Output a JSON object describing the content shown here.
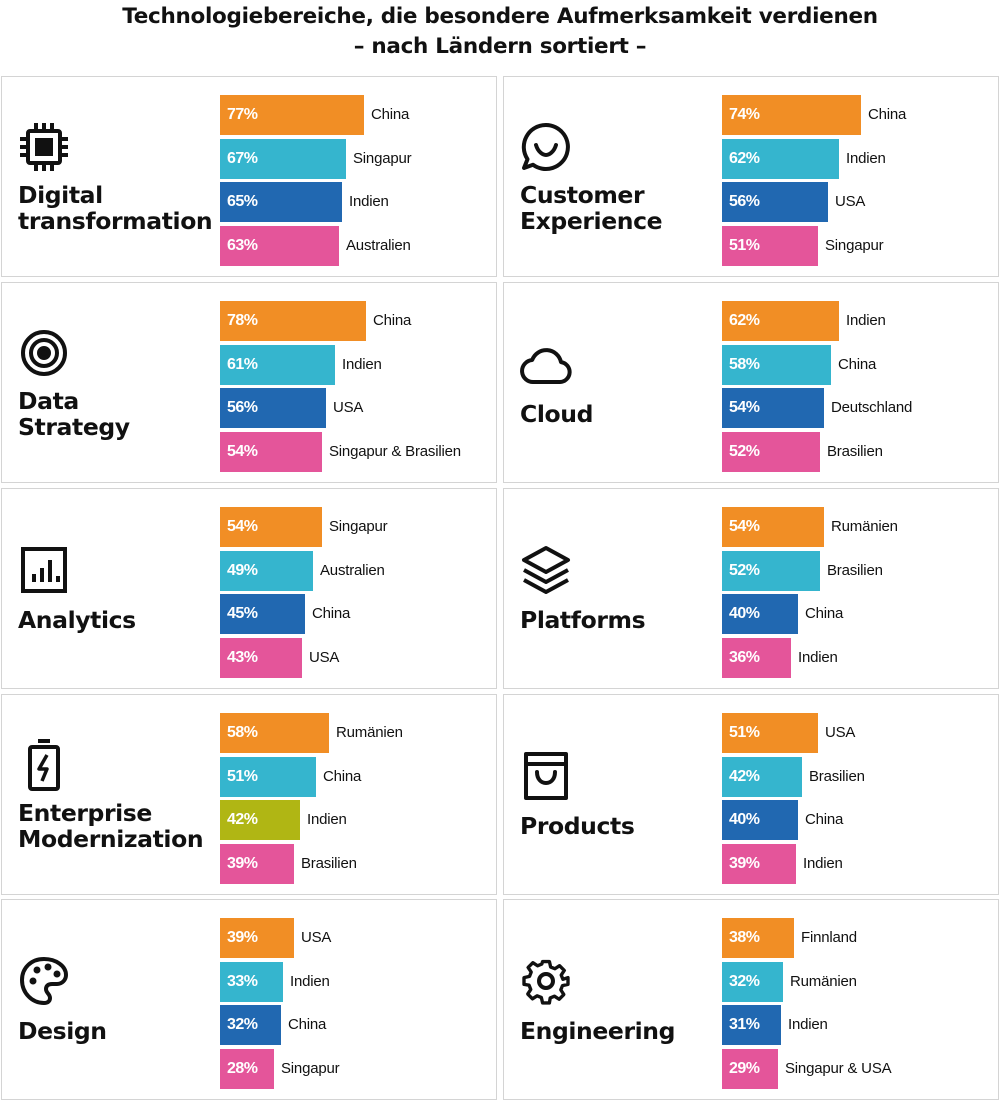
{
  "title_line1": "Technologiebereiche, die besondere Aufmerksamkeit verdienen",
  "title_line2": "– nach Ländern sortiert –",
  "colors": {
    "orange": "#f18e25",
    "cyan": "#35b5ce",
    "blue": "#2168b1",
    "pink": "#e4559a",
    "olive": "#b0b614"
  },
  "chart_data": [
    {
      "type": "bar",
      "title_lines": [
        "Digital",
        "transformation"
      ],
      "icon": "chip-icon",
      "categories": [
        "China",
        "Singapur",
        "Indien",
        "Australien"
      ],
      "values": [
        77,
        67,
        65,
        63
      ],
      "value_labels": [
        "77%",
        "67%",
        "65%",
        "63%"
      ],
      "bar_colors": [
        "#f18e25",
        "#35b5ce",
        "#2168b1",
        "#e4559a"
      ]
    },
    {
      "type": "bar",
      "title_lines": [
        "Customer",
        "Experience"
      ],
      "icon": "smile-chat-icon",
      "categories": [
        "China",
        "Indien",
        "USA",
        "Singapur"
      ],
      "values": [
        74,
        62,
        56,
        51
      ],
      "value_labels": [
        "74%",
        "62%",
        "56%",
        "51%"
      ],
      "bar_colors": [
        "#f18e25",
        "#35b5ce",
        "#2168b1",
        "#e4559a"
      ]
    },
    {
      "type": "bar",
      "title_lines": [
        "Data",
        "Strategy"
      ],
      "icon": "target-icon",
      "categories": [
        "China",
        "Indien",
        "USA",
        "Singapur & Brasilien"
      ],
      "values": [
        78,
        61,
        56,
        54
      ],
      "value_labels": [
        "78%",
        "61%",
        "56%",
        "54%"
      ],
      "bar_colors": [
        "#f18e25",
        "#35b5ce",
        "#2168b1",
        "#e4559a"
      ]
    },
    {
      "type": "bar",
      "title_lines": [
        "Cloud"
      ],
      "icon": "cloud-icon",
      "categories": [
        "Indien",
        "China",
        "Deutschland",
        "Brasilien"
      ],
      "values": [
        62,
        58,
        54,
        52
      ],
      "value_labels": [
        "62%",
        "58%",
        "54%",
        "52%"
      ],
      "bar_colors": [
        "#f18e25",
        "#35b5ce",
        "#2168b1",
        "#e4559a"
      ]
    },
    {
      "type": "bar",
      "title_lines": [
        "Analytics"
      ],
      "icon": "bar-chart-icon",
      "categories": [
        "Singapur",
        "Australien",
        "China",
        "USA"
      ],
      "values": [
        54,
        49,
        45,
        43
      ],
      "value_labels": [
        "54%",
        "49%",
        "45%",
        "43%"
      ],
      "bar_colors": [
        "#f18e25",
        "#35b5ce",
        "#2168b1",
        "#e4559a"
      ]
    },
    {
      "type": "bar",
      "title_lines": [
        "Platforms"
      ],
      "icon": "layers-icon",
      "categories": [
        "Rumänien",
        "Brasilien",
        "China",
        "Indien"
      ],
      "values": [
        54,
        52,
        40,
        36
      ],
      "value_labels": [
        "54%",
        "52%",
        "40%",
        "36%"
      ],
      "bar_colors": [
        "#f18e25",
        "#35b5ce",
        "#2168b1",
        "#e4559a"
      ]
    },
    {
      "type": "bar",
      "title_lines": [
        "Enterprise",
        "Modernization"
      ],
      "icon": "battery-bolt-icon",
      "categories": [
        "Rumänien",
        "China",
        "Indien",
        "Brasilien"
      ],
      "values": [
        58,
        51,
        42,
        39
      ],
      "value_labels": [
        "58%",
        "51%",
        "42%",
        "39%"
      ],
      "bar_colors": [
        "#f18e25",
        "#35b5ce",
        "#b0b614",
        "#e4559a"
      ]
    },
    {
      "type": "bar",
      "title_lines": [
        "Products"
      ],
      "icon": "shopping-bag-icon",
      "categories": [
        "USA",
        "Brasilien",
        "China",
        "Indien"
      ],
      "values": [
        51,
        42,
        40,
        39
      ],
      "value_labels": [
        "51%",
        "42%",
        "40%",
        "39%"
      ],
      "bar_colors": [
        "#f18e25",
        "#35b5ce",
        "#2168b1",
        "#e4559a"
      ]
    },
    {
      "type": "bar",
      "title_lines": [
        "Design"
      ],
      "icon": "palette-icon",
      "categories": [
        "USA",
        "Indien",
        "China",
        "Singapur"
      ],
      "values": [
        39,
        33,
        32,
        28
      ],
      "value_labels": [
        "39%",
        "33%",
        "32%",
        "28%"
      ],
      "bar_colors": [
        "#f18e25",
        "#35b5ce",
        "#2168b1",
        "#e4559a"
      ]
    },
    {
      "type": "bar",
      "title_lines": [
        "Engineering"
      ],
      "icon": "gear-icon",
      "categories": [
        "Finnland",
        "Rumänien",
        "Indien",
        "Singapur & USA"
      ],
      "values": [
        38,
        32,
        31,
        29
      ],
      "value_labels": [
        "38%",
        "32%",
        "31%",
        "29%"
      ],
      "bar_colors": [
        "#f18e25",
        "#35b5ce",
        "#2168b1",
        "#e4559a"
      ]
    }
  ]
}
